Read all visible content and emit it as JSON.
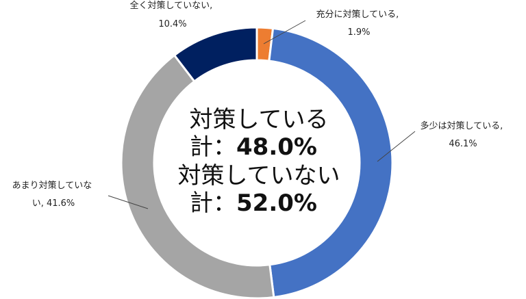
{
  "chart_data": {
    "type": "pie",
    "variant": "donut",
    "slices": [
      {
        "label": "充分に対策している",
        "value": 1.9,
        "value_label": "1.9%",
        "color": "#ED7D31"
      },
      {
        "label": "多少は対策している",
        "value": 46.1,
        "value_label": "46.1%",
        "color": "#4472C4"
      },
      {
        "label": "あまり対策していない",
        "value": 41.6,
        "value_label": "41.6%",
        "color": "#A5A5A5"
      },
      {
        "label": "全く対策していない",
        "value": 10.4,
        "value_label": "10.4%",
        "color": "#002060"
      }
    ],
    "annotations": {
      "slice_labels": [
        {
          "lines": [
            "充分に対策している,",
            "1.9%"
          ]
        },
        {
          "lines": [
            "多少は対策している,",
            "46.1%"
          ]
        },
        {
          "lines": [
            "あまり対策していな",
            "い, 41.6%"
          ]
        },
        {
          "lines": [
            "全く対策していない,",
            "10.4%"
          ]
        }
      ],
      "center": {
        "line1": "対策している",
        "line2_prefix": "計：",
        "line2_value": "48.0%",
        "line3": "対策していない",
        "line4_prefix": "計：",
        "line4_value": "52.0%"
      }
    }
  }
}
